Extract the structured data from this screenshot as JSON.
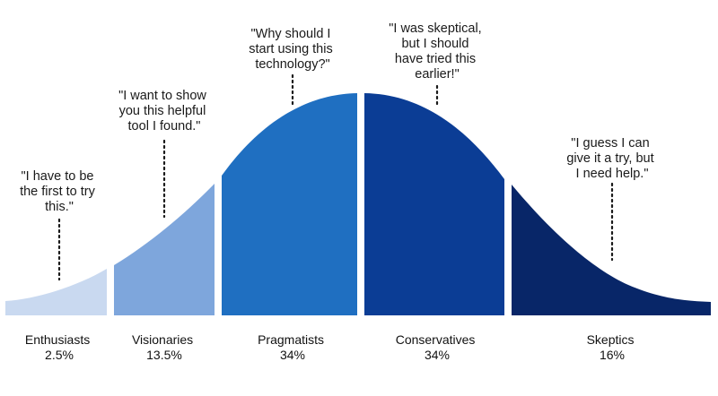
{
  "segments": [
    {
      "name": "Enthusiasts",
      "percent": "2.5%",
      "quote": [
        "\"I have to be",
        "the first to try",
        "this.\""
      ],
      "color": "#c9d9f0"
    },
    {
      "name": "Visionaries",
      "percent": "13.5%",
      "quote": [
        "\"I want to show",
        "you this helpful",
        "tool I found.\""
      ],
      "color": "#7ea6dc"
    },
    {
      "name": "Pragmatists",
      "percent": "34%",
      "quote": [
        "\"Why should I",
        "start using this",
        "technology?\""
      ],
      "color": "#1f6fc1"
    },
    {
      "name": "Conservatives",
      "percent": "34%",
      "quote": [
        "\"I was skeptical,",
        "but I should",
        "have tried this",
        "earlier!\""
      ],
      "color": "#0b3d95"
    },
    {
      "name": "Skeptics",
      "percent": "16%",
      "quote": [
        "\"I guess I can",
        "give it a try, but",
        "I need help.\""
      ],
      "color": "#082668"
    }
  ]
}
